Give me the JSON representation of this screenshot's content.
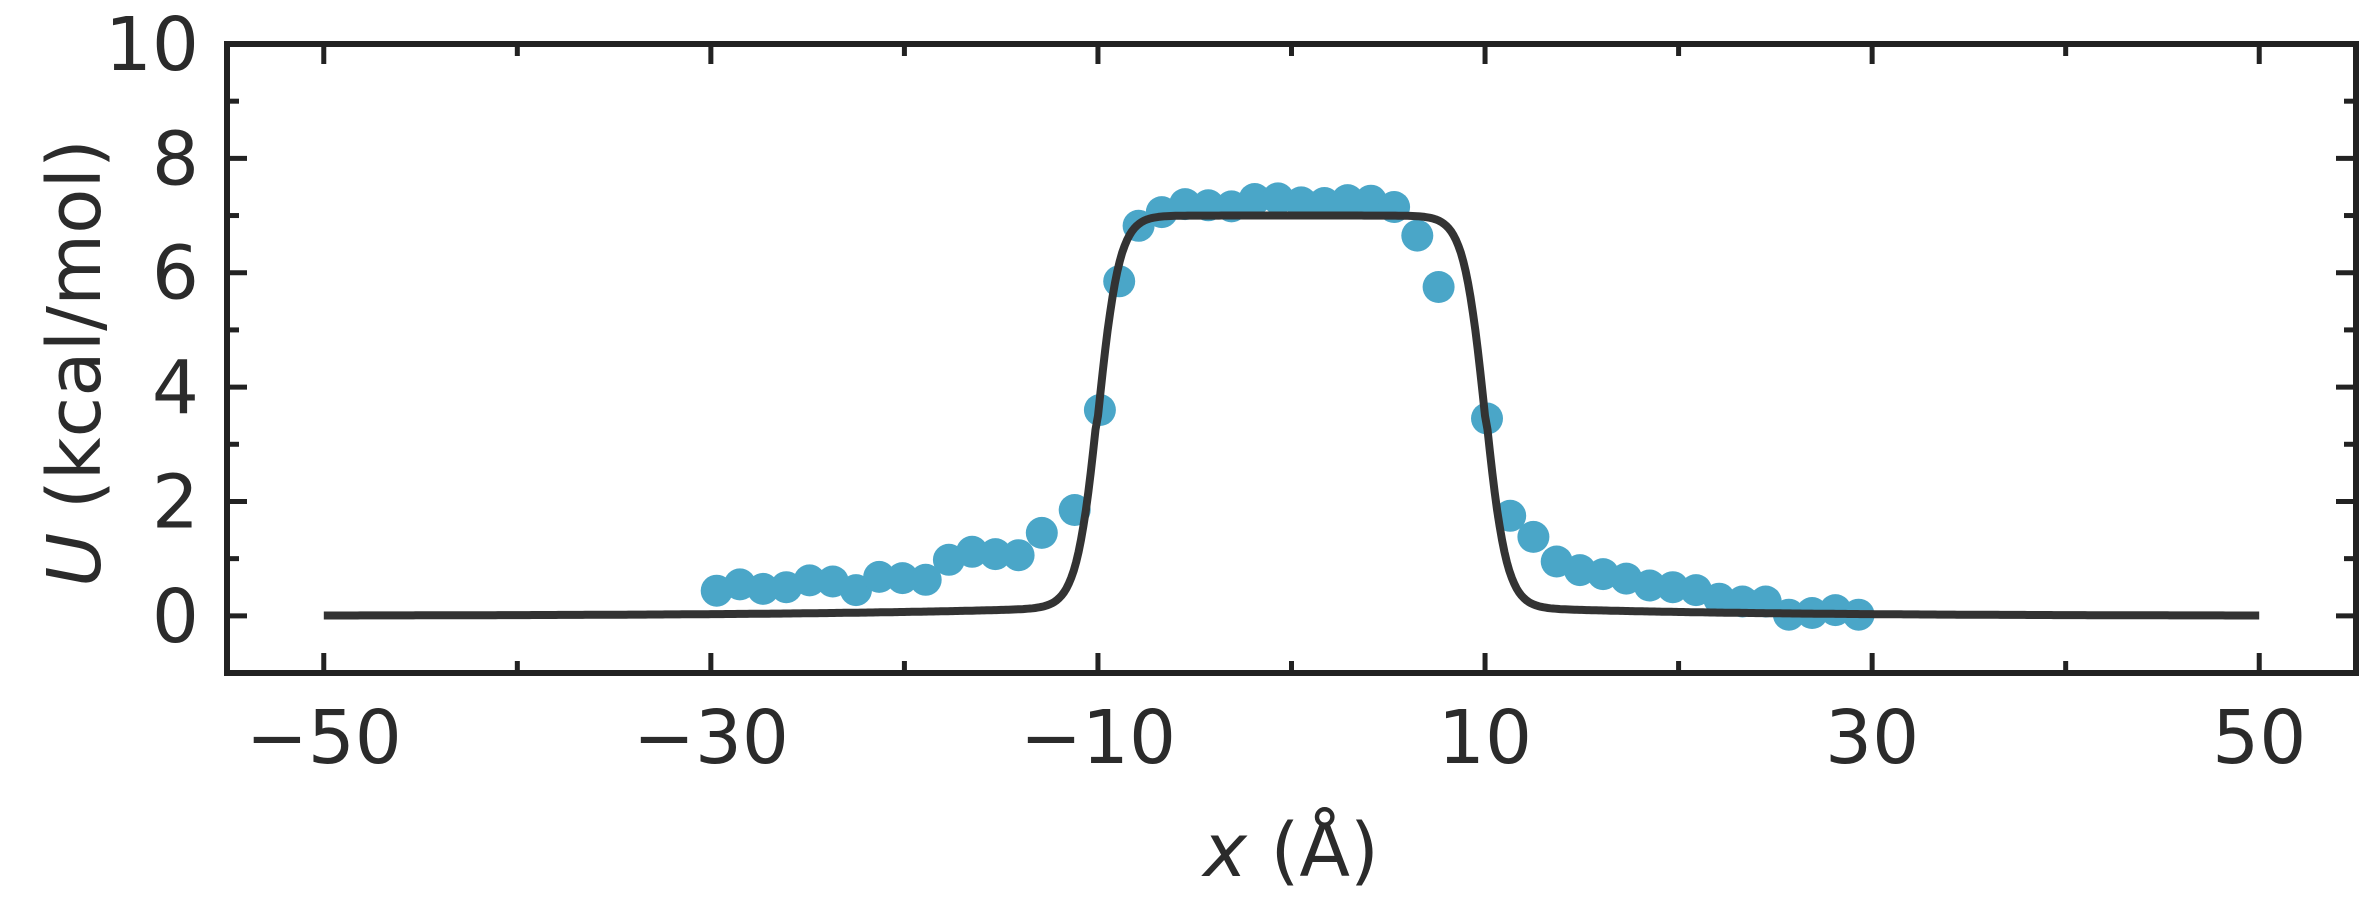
{
  "chart_data": {
    "type": "scatter",
    "title": "",
    "xlabel": "x (Å)",
    "xlabel_var": "x",
    "xlabel_unit": " (Å)",
    "ylabel": "U (kcal/mol)",
    "ylabel_var": "U",
    "ylabel_unit": " (kcal/mol)",
    "xlim": [
      -55,
      55
    ],
    "ylim": [
      -1,
      10
    ],
    "xticks": [
      -50,
      -30,
      -10,
      10,
      30,
      50
    ],
    "xtick_labels": [
      "−50",
      "−30",
      "−10",
      "10",
      "30",
      "50"
    ],
    "xticks_minor": [
      -40,
      -20,
      0,
      20,
      40
    ],
    "yticks": [
      0,
      2,
      4,
      6,
      8,
      10
    ],
    "ytick_labels": [
      "0",
      "2",
      "4",
      "6",
      "8",
      "10"
    ],
    "yticks_minor": [
      1,
      3,
      5,
      7,
      9
    ],
    "grid": false,
    "colors": {
      "points": "#4aa6c8",
      "curve": "#333333",
      "axes": "#222222"
    },
    "series": [
      {
        "kind": "scatter",
        "x": [
          -29.7,
          -28.5,
          -27.3,
          -26.1,
          -24.9,
          -23.7,
          -22.5,
          -21.3,
          -20.1,
          -18.9,
          -17.7,
          -16.5,
          -15.3,
          -14.1,
          -12.9,
          -11.2,
          -9.9,
          -8.9,
          -7.9,
          -6.7,
          -5.5,
          -4.3,
          -3.1,
          -1.9,
          -0.7,
          0.5,
          1.7,
          2.9,
          4.1,
          5.3,
          6.5,
          7.6,
          10.1,
          11.3,
          12.5,
          13.7,
          14.9,
          16.1,
          17.3,
          18.5,
          19.7,
          20.9,
          22.1,
          23.3,
          24.5,
          25.7,
          26.9,
          28.1,
          29.3
        ],
        "y": [
          0.44,
          0.55,
          0.47,
          0.5,
          0.62,
          0.6,
          0.45,
          0.68,
          0.66,
          0.63,
          0.98,
          1.12,
          1.08,
          1.06,
          1.45,
          1.85,
          3.6,
          5.85,
          6.82,
          7.06,
          7.2,
          7.18,
          7.16,
          7.29,
          7.3,
          7.23,
          7.22,
          7.27,
          7.26,
          7.15,
          6.65,
          5.75,
          3.45,
          1.75,
          1.38,
          0.95,
          0.8,
          0.73,
          0.65,
          0.53,
          0.5,
          0.45,
          0.3,
          0.25,
          0.25,
          0.02,
          0.05,
          0.1,
          0.02
        ]
      },
      {
        "kind": "line",
        "model": {
          "depth": 7.0,
          "center": 0,
          "half_width": 10,
          "edge_width": 0.55,
          "tail_amp": 0.155,
          "tail_width": 5.5
        },
        "x_range": [
          -50,
          50
        ]
      }
    ]
  }
}
